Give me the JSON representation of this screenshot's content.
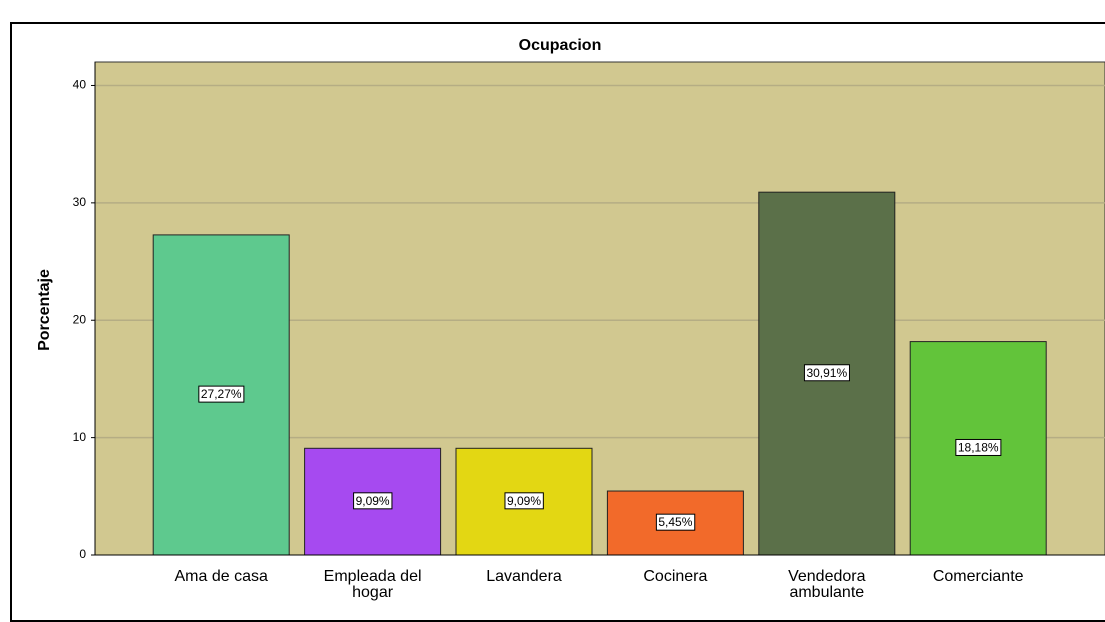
{
  "chart_data": {
    "type": "bar",
    "title": "Ocupacion",
    "y_label": "Porcentaje",
    "categories": [
      "Ama de casa",
      "Empleada del hogar",
      "Lavandera",
      "Cocinera",
      "Vendedora ambulante",
      "Comerciante"
    ],
    "values": [
      27.27,
      9.09,
      9.09,
      5.45,
      30.91,
      18.18
    ],
    "value_labels": [
      "27,27%",
      "9,09%",
      "9,09%",
      "5,45%",
      "30,91%",
      "18,18%"
    ],
    "colors": [
      "#5ec98e",
      "#a64af0",
      "#e3d713",
      "#f26a2a",
      "#5b7049",
      "#62c43a"
    ],
    "ylim": [
      0,
      42
    ],
    "yticks": [
      0,
      10,
      20,
      30,
      40
    ],
    "grid": true
  }
}
